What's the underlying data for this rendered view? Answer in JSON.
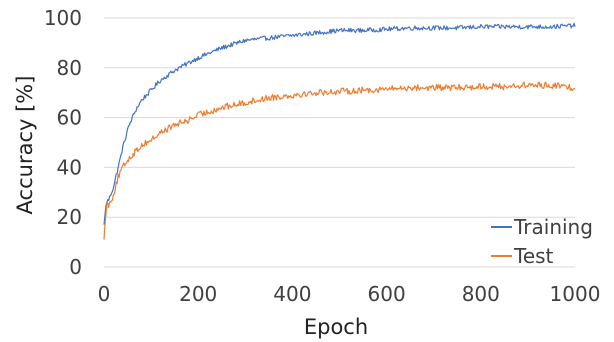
{
  "chart_data": {
    "type": "line",
    "xlabel": "Epoch",
    "ylabel": "Accuracy [%]",
    "xlim": [
      0,
      1000
    ],
    "ylim": [
      0,
      100
    ],
    "xticks": [
      "0",
      "200",
      "400",
      "600",
      "800",
      "1000"
    ],
    "yticks": [
      "0",
      "20",
      "40",
      "60",
      "80",
      "100"
    ],
    "grid": "horizontal",
    "legend_position": "bottom-right",
    "x": [
      0,
      5,
      10,
      20,
      30,
      40,
      50,
      60,
      70,
      80,
      100,
      120,
      150,
      180,
      200,
      250,
      300,
      350,
      400,
      450,
      500,
      550,
      600,
      650,
      700,
      750,
      800,
      850,
      900,
      950,
      1000
    ],
    "series": [
      {
        "name": "Training",
        "color": "#4472C4",
        "values": [
          17,
          26,
          27,
          32,
          40,
          48,
          55,
          60,
          64,
          67,
          71,
          75,
          79,
          82,
          84,
          88,
          91,
          92,
          93,
          94,
          95,
          95,
          95.5,
          96,
          96,
          96,
          96.5,
          96.5,
          96.5,
          96.5,
          97
        ]
      },
      {
        "name": "Test",
        "color": "#ED7D31",
        "values": [
          11,
          25,
          25,
          29,
          36,
          40,
          43,
          45,
          47,
          49,
          51,
          54,
          57,
          59,
          61,
          64,
          66,
          68,
          69,
          70,
          70.5,
          71,
          71.5,
          72,
          72,
          72,
          72.5,
          72.5,
          73,
          73,
          72
        ]
      }
    ]
  }
}
